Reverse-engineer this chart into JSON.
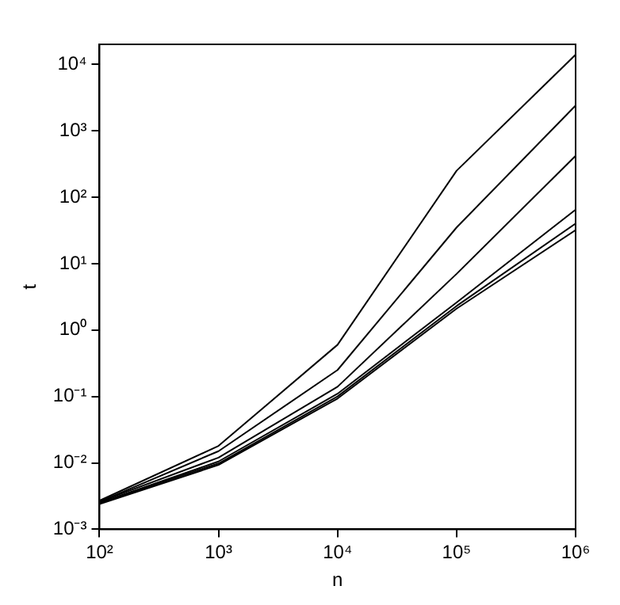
{
  "chart_data": {
    "type": "line",
    "xlabel": "n",
    "ylabel": "t",
    "log": "xy",
    "grid": false,
    "legend": false,
    "marker": "none",
    "line_style": "solid",
    "x": [
      100,
      1000,
      10000,
      100000,
      1000000
    ],
    "xlim": [
      100,
      1000000
    ],
    "xticks": [
      {
        "value": 100,
        "label": "10²"
      },
      {
        "value": 1000,
        "label": "10³"
      },
      {
        "value": 10000,
        "label": "10⁴"
      },
      {
        "value": 100000,
        "label": "10⁵"
      },
      {
        "value": 1000000,
        "label": "10⁶"
      }
    ],
    "ylim": [
      0.001,
      20000
    ],
    "yticks": [
      {
        "value": 0.001,
        "label": "10⁻³"
      },
      {
        "value": 0.01,
        "label": "10⁻²"
      },
      {
        "value": 0.1,
        "label": "10⁻¹"
      },
      {
        "value": 1,
        "label": "10⁰"
      },
      {
        "value": 10,
        "label": "10¹"
      },
      {
        "value": 100,
        "label": "10²"
      },
      {
        "value": 1000,
        "label": "10³"
      },
      {
        "value": 10000,
        "label": "10⁴"
      }
    ],
    "series": [
      {
        "color": "#000000",
        "values": [
          0.0027,
          0.018,
          0.6,
          250,
          14000
        ]
      },
      {
        "color": "#000000",
        "values": [
          0.0026,
          0.015,
          0.25,
          35,
          2400
        ]
      },
      {
        "color": "#000000",
        "values": [
          0.0026,
          0.012,
          0.14,
          7,
          420
        ]
      },
      {
        "color": "#000000",
        "values": [
          0.0025,
          0.0105,
          0.11,
          2.6,
          65
        ]
      },
      {
        "color": "#000000",
        "values": [
          0.0025,
          0.0098,
          0.1,
          2.3,
          40
        ]
      },
      {
        "color": "#000000",
        "values": [
          0.0024,
          0.0093,
          0.093,
          2.1,
          32
        ]
      }
    ]
  }
}
